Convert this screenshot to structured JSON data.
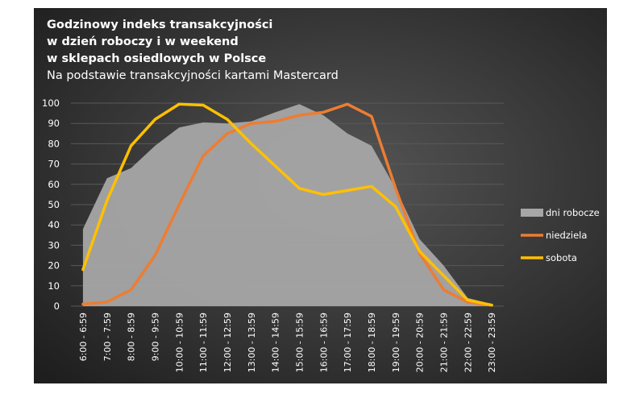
{
  "chart_data": {
    "type": "area+line",
    "title_lines": [
      "Godzinowy indeks transakcyjności",
      "w dzień roboczy i w weekend",
      "w sklepach osiedlowych w Polsce"
    ],
    "subtitle": "Na podstawie transakcyjności kartami Mastercard",
    "categories": [
      "6:00 - 6:59",
      "7:00 - 7:59",
      "8:00 - 8:59",
      "9:00 - 9:59",
      "10:00 - 10:59",
      "11:00 - 11:59",
      "12:00 - 12:59",
      "13:00 - 13:59",
      "14:00 - 14:59",
      "15:00 - 15:59",
      "16:00 - 16:59",
      "17:00 - 17:59",
      "18:00 - 18:59",
      "19:00 - 19:59",
      "20:00 - 20:59",
      "21:00 - 21:59",
      "22:00 - 22:59",
      "23:00 - 23:59"
    ],
    "ylim": [
      0,
      100
    ],
    "yticks": [
      0,
      10,
      20,
      30,
      40,
      50,
      60,
      70,
      80,
      90,
      100
    ],
    "grid": true,
    "legend_position": "right",
    "series": [
      {
        "name": "dni robocze",
        "kind": "area",
        "color": "#a6a6a6",
        "values": [
          38,
          63,
          68,
          79,
          88,
          90.5,
          90,
          91,
          95.5,
          99.5,
          94,
          85,
          79,
          58,
          33,
          20,
          4,
          1
        ]
      },
      {
        "name": "niedziela",
        "kind": "line",
        "color": "#ed7d31",
        "values": [
          1,
          2,
          8,
          25,
          50,
          74,
          85,
          90,
          91,
          94,
          95.5,
          99.5,
          93.5,
          58,
          26,
          8,
          2,
          0.5
        ]
      },
      {
        "name": "sobota",
        "kind": "line",
        "color": "#ffc000",
        "values": [
          18,
          52,
          79,
          92,
          99.5,
          99,
          92,
          80,
          69,
          58,
          55,
          57,
          59,
          49,
          27,
          15,
          3,
          0.5
        ]
      }
    ]
  },
  "colors": {
    "background": "#262626",
    "background_light": "#4f4f4f",
    "grid": "#595959",
    "text": "#ffffff"
  }
}
